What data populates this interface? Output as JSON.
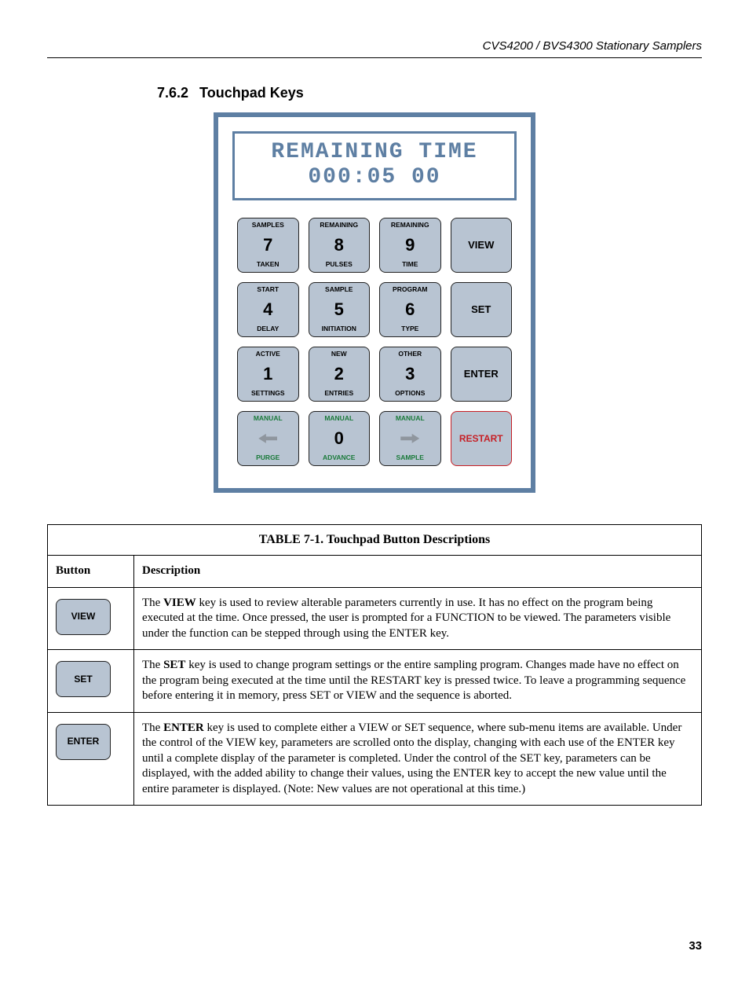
{
  "header": {
    "running_title": "CVS4200 / BVS4300 Stationary Samplers"
  },
  "section": {
    "number": "7.6.2",
    "title": "Touchpad Keys"
  },
  "lcd": {
    "line1": "REMAINING TIME",
    "line2": "000:05 00"
  },
  "keys": [
    {
      "top": "SAMPLES",
      "mid": "7",
      "bot": "TAKEN",
      "kind": "num"
    },
    {
      "top": "REMAINING",
      "mid": "8",
      "bot": "PULSES",
      "kind": "num"
    },
    {
      "top": "REMAINING",
      "mid": "9",
      "bot": "TIME",
      "kind": "num"
    },
    {
      "top": "",
      "mid": "VIEW",
      "bot": "",
      "kind": "side"
    },
    {
      "top": "START",
      "mid": "4",
      "bot": "DELAY",
      "kind": "num"
    },
    {
      "top": "SAMPLE",
      "mid": "5",
      "bot": "INITIATION",
      "kind": "num"
    },
    {
      "top": "PROGRAM",
      "mid": "6",
      "bot": "TYPE",
      "kind": "num"
    },
    {
      "top": "",
      "mid": "SET",
      "bot": "",
      "kind": "side"
    },
    {
      "top": "ACTIVE",
      "mid": "1",
      "bot": "SETTINGS",
      "kind": "num"
    },
    {
      "top": "NEW",
      "mid": "2",
      "bot": "ENTRIES",
      "kind": "num"
    },
    {
      "top": "OTHER",
      "mid": "3",
      "bot": "OPTIONS",
      "kind": "num"
    },
    {
      "top": "",
      "mid": "ENTER",
      "bot": "",
      "kind": "side"
    },
    {
      "top": "MANUAL",
      "mid": "",
      "bot": "PURGE",
      "kind": "arrow-left"
    },
    {
      "top": "MANUAL",
      "mid": "0",
      "bot": "ADVANCE",
      "kind": "green-num"
    },
    {
      "top": "MANUAL",
      "mid": "",
      "bot": "SAMPLE",
      "kind": "arrow-right"
    },
    {
      "top": "",
      "mid": "RESTART",
      "bot": "",
      "kind": "restart"
    }
  ],
  "table": {
    "caption": "TABLE 7-1.  Touchpad Button Descriptions",
    "head": {
      "c1": "Button",
      "c2": "Description"
    },
    "rows": [
      {
        "button": "VIEW",
        "desc_bold": "VIEW",
        "desc": "The VIEW key is used to review alterable parameters currently in use. It has no effect on the program being executed at the time. Once pressed, the user is prompted for a FUNCTION to be viewed. The parameters visible under the function can be stepped through using the ENTER key."
      },
      {
        "button": "SET",
        "desc_bold": "SET",
        "desc": "The SET key is used to change program settings or the entire sampling program. Changes made have no effect on the program being executed at the time until the RESTART key is pressed twice. To leave a programming sequence before entering it in memory, press SET or VIEW and the sequence is aborted."
      },
      {
        "button": "ENTER",
        "desc_bold": "ENTER",
        "desc": "The ENTER key is used to complete either a VIEW or SET sequence, where sub-menu items are available. Under the control of the VIEW key, parameters are scrolled onto the display, changing with each use of the ENTER key until a complete display of the parameter is completed. Under the control of the SET key, parameters can be displayed, with the added ability to change their values, using the ENTER key to accept the new value until the entire parameter is displayed. (Note: New values are not operational at this time.)"
      }
    ]
  },
  "footer": {
    "page": "33"
  }
}
